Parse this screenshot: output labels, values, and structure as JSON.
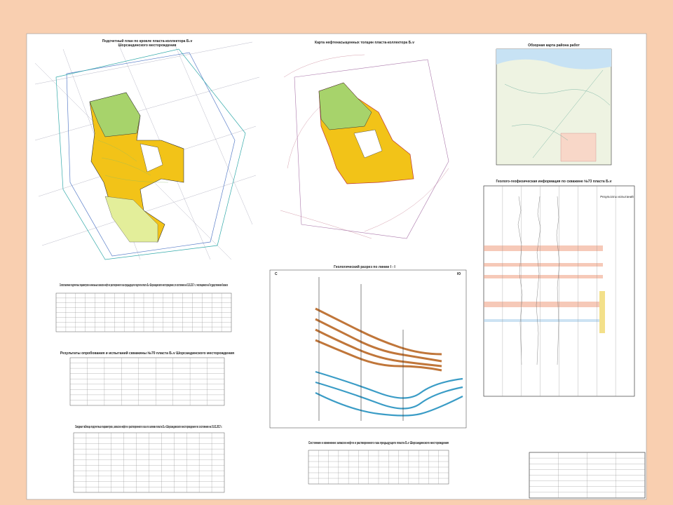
{
  "plan_map": {
    "title": "Подсчетный план по кровле пласта-коллектора Б₁v",
    "subtitle": "Шорсандинского месторождения"
  },
  "thickness_map": {
    "title": "Карта нефтенасыщенных толщин пласта-коллектора Б₁v"
  },
  "overview_map": {
    "title": "Обзорная карта района работ"
  },
  "well_log": {
    "title": "Геолого-геофизическая информация по скважине №73 пласта Б₁v",
    "column": "Результаты испытаний"
  },
  "section": {
    "title": "Геологический разрез по линии I - I",
    "left": "С",
    "right": "Ю"
  },
  "tables": [
    {
      "title": "Сопоставление подсчетных параметров и начальных запасов нефти и растворенного газа предыдущего подсчета пласта Б₁v Шорсандинского месторождения, по состоянию на 01.01.2017 г. с числящимися на Государственном балансе"
    },
    {
      "title": "Результаты опробования и испытаний скважины №70 пласта Б₁v Шорсандинского месторождения"
    },
    {
      "title": "Сводная таблица подсчетных параметров, запасов нефти и растворенного газа по залежи пласта Б₁v Шорсандинского месторождения по состоянию на 01.01.2017 г."
    },
    {
      "title": "Состояние и изменение запасов нефти и растворенного газа предыдущего пласта Б₁v Шорсандинского месторождения"
    }
  ]
}
